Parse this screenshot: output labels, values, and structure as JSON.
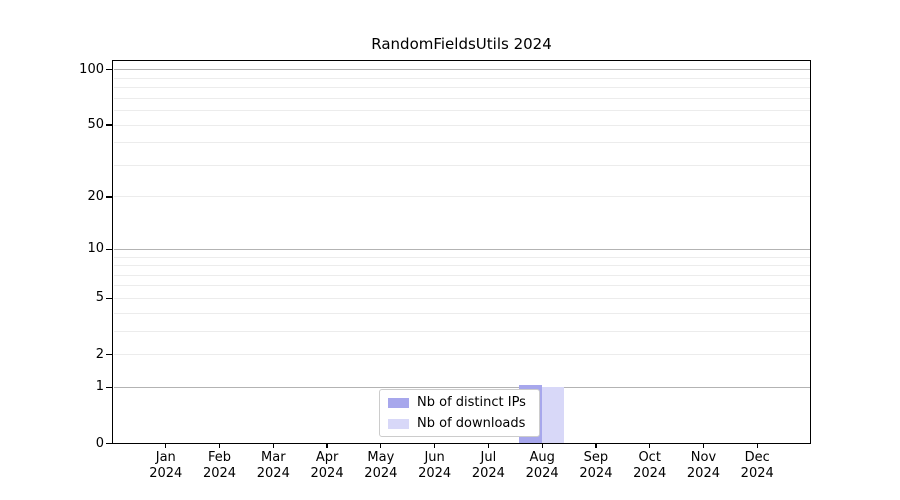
{
  "page": {
    "background": "#ffffff"
  },
  "chart_data": {
    "type": "bar",
    "title": "RandomFieldsUtils 2024",
    "categories": [
      "Jan",
      "Feb",
      "Mar",
      "Apr",
      "May",
      "Jun",
      "Jul",
      "Aug",
      "Sep",
      "Oct",
      "Nov",
      "Dec"
    ],
    "category_year": "2024",
    "series": [
      {
        "name": "Nb of distinct IPs",
        "color": "#a7a7ec",
        "values": [
          0,
          0,
          0,
          0,
          0,
          0,
          0,
          1,
          0,
          0,
          0,
          0
        ]
      },
      {
        "name": "Nb of downloads",
        "color": "#d8d8f8",
        "values": [
          0,
          0,
          0,
          0,
          0,
          0,
          0,
          1,
          0,
          0,
          0,
          0
        ]
      }
    ],
    "xlabel": "",
    "ylabel": "",
    "yscale": "log1p",
    "ylim": [
      0,
      113
    ],
    "yticks": [
      0,
      1,
      2,
      5,
      10,
      20,
      50,
      100
    ],
    "ygrid_major": [
      1,
      10,
      100
    ],
    "ygrid_minor": [
      2,
      3,
      4,
      5,
      6,
      7,
      8,
      9,
      20,
      30,
      40,
      50,
      60,
      70,
      80,
      90
    ],
    "grid": true,
    "legend": {
      "position": "lower center",
      "entries": [
        "Nb of distinct IPs",
        "Nb of downloads"
      ]
    },
    "colors": {
      "grid_major": "#b3b3b3",
      "grid_minor": "#ececec",
      "axis": "#000000",
      "text": "#000000",
      "legend_border": "#cccccc"
    }
  }
}
